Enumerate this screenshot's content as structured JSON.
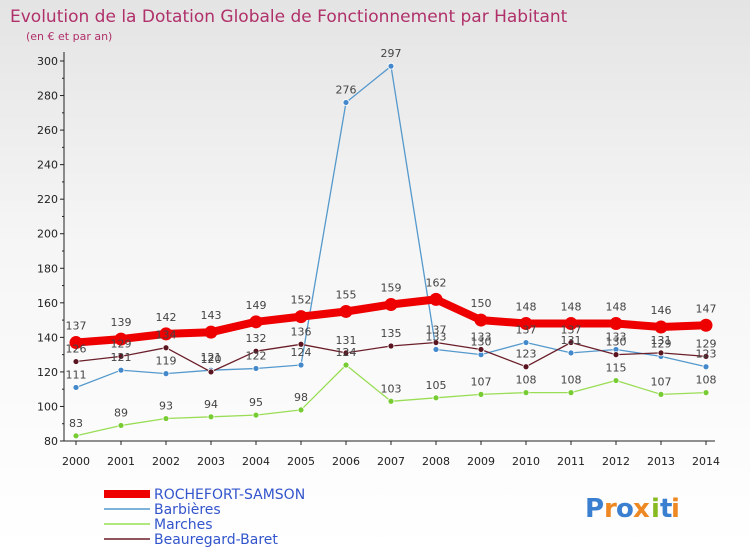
{
  "chart_data": {
    "type": "line",
    "title": "Evolution de la Dotation Globale de Fonctionnement par Habitant",
    "subtitle": "(en € et par an)",
    "xlabel": "",
    "ylabel": "",
    "ylim": [
      80,
      300
    ],
    "yticks": [
      "80",
      "100",
      "120",
      "140",
      "160",
      "180",
      "200",
      "220",
      "240",
      "260",
      "280",
      "300"
    ],
    "categories": [
      "2000",
      "2001",
      "2002",
      "2003",
      "2004",
      "2005",
      "2006",
      "2007",
      "2008",
      "2009",
      "2010",
      "2011",
      "2012",
      "2013",
      "2014"
    ],
    "series": [
      {
        "name": "Marches",
        "color": "#99dd55",
        "dot": "#77cc33",
        "values": [
          83,
          89,
          93,
          94,
          95,
          98,
          124,
          103,
          105,
          107,
          108,
          108,
          115,
          107,
          108
        ]
      },
      {
        "name": "Barbières",
        "color": "#5599cc",
        "dot": "#4488cc",
        "values": [
          111,
          121,
          119,
          121,
          122,
          124,
          276,
          297,
          133,
          130,
          137,
          131,
          133,
          129,
          123
        ]
      },
      {
        "name": "Beauregard-Baret",
        "color": "#6b1f2a",
        "dot": "#5a1520",
        "values": [
          126,
          129,
          134,
          120,
          132,
          136,
          131,
          135,
          137,
          133,
          123,
          137,
          130,
          131,
          129
        ]
      },
      {
        "name": "ROCHEFORT-SAMSON",
        "color": "#ee0000",
        "dot": "#ee0000",
        "values": [
          137,
          139,
          142,
          143,
          149,
          152,
          155,
          159,
          162,
          150,
          148,
          148,
          148,
          146,
          147
        ]
      }
    ],
    "legend": [
      "ROCHEFORT-SAMSON",
      "Barbières",
      "Marches",
      "Beauregard-Baret"
    ],
    "legend_colors": [
      "#ee0000",
      "#5599cc",
      "#99dd55",
      "#6b1f2a"
    ],
    "legend_position": "bottom-left",
    "grid": false
  },
  "logo": {
    "letters": [
      "P",
      "r",
      "o",
      "x",
      "i",
      "t",
      "i"
    ],
    "colors": [
      "#3a7fd0",
      "#ee8822",
      "#3a7fd0",
      "#ee8822",
      "#88bb22",
      "#3a7fd0",
      "#ee8822"
    ]
  }
}
